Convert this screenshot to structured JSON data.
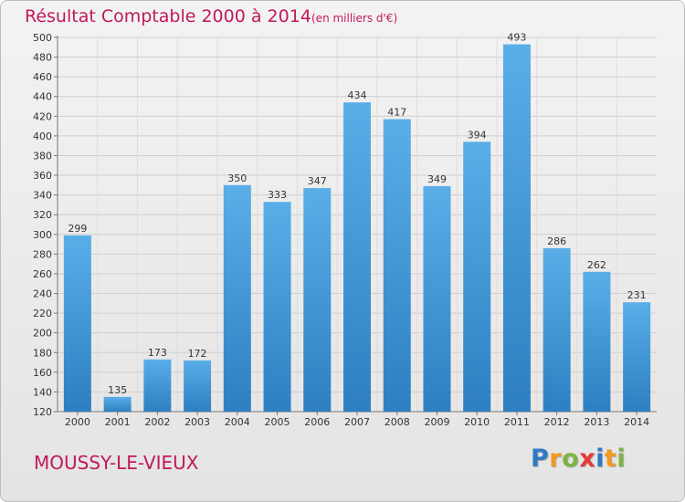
{
  "header": {
    "title": "Résultat Comptable 2000 à 2014",
    "subtitle": "(en milliers d'€)"
  },
  "footer": {
    "place": "MOUSSY-LE-VIEUX",
    "logo_text": "Proxiti",
    "logo_letters": [
      "P",
      "r",
      "o",
      "x",
      "i",
      "t",
      "i"
    ],
    "logo_colors": [
      "#2e7bc4",
      "#f29a1f",
      "#7cb342",
      "#e53935",
      "#2e7bc4",
      "#f29a1f",
      "#7cb342"
    ]
  },
  "chart_data": {
    "type": "bar",
    "title": "Résultat Comptable 2000 à 2014",
    "subtitle": "(en milliers d'€)",
    "categories": [
      "2000",
      "2001",
      "2002",
      "2003",
      "2004",
      "2005",
      "2006",
      "2007",
      "2008",
      "2009",
      "2010",
      "2011",
      "2012",
      "2013",
      "2014"
    ],
    "values": [
      299,
      135,
      173,
      172,
      350,
      333,
      347,
      434,
      417,
      349,
      394,
      493,
      286,
      262,
      231
    ],
    "ylim": [
      120,
      500
    ],
    "yticks": [
      120,
      140,
      160,
      180,
      200,
      220,
      240,
      260,
      280,
      300,
      320,
      340,
      360,
      380,
      400,
      420,
      440,
      460,
      480,
      500
    ],
    "grid": true,
    "bar_color_top": "#5aaee8",
    "bar_color_bottom": "#2d7fc1",
    "xlabel": "",
    "ylabel": ""
  }
}
